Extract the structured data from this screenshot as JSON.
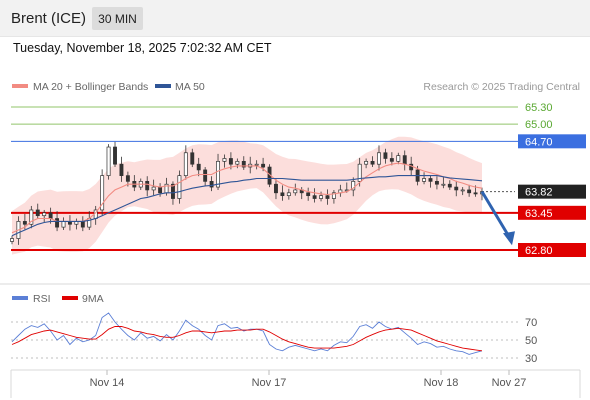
{
  "header": {
    "instrument": "Brent (ICE)",
    "timeframe": "30 MIN",
    "timestamp": "Tuesday, November 18, 2025 7:02:32 AM CET"
  },
  "legend": {
    "items": [
      {
        "label": "MA 20 + Bollinger Bands",
        "color": "#f28b82"
      },
      {
        "label": "MA 50",
        "color": "#2f5597"
      }
    ],
    "credit": "Research © 2025 Trading Central"
  },
  "rsi_legend": {
    "items": [
      {
        "label": "RSI",
        "color": "#5b7fd6"
      },
      {
        "label": "9MA",
        "color": "#e00000"
      }
    ]
  },
  "chart_data": [
    {
      "type": "candlestick",
      "title": "",
      "x_tick_labels": [
        "Nov 14",
        "Nov 17",
        "Nov 18",
        "Nov 27"
      ],
      "ylim": [
        62.5,
        65.5
      ],
      "levels": [
        {
          "value": 65.3,
          "label": "65.30",
          "kind": "resistance-target",
          "color": "#90c46a"
        },
        {
          "value": 65.0,
          "label": "65.00",
          "kind": "resistance-target",
          "color": "#90c46a"
        },
        {
          "value": 64.7,
          "label": "64.70",
          "kind": "pivot",
          "color": "#3b6fe0"
        },
        {
          "value": 63.82,
          "label": "63.82",
          "kind": "last-price",
          "color": "#222222"
        },
        {
          "value": 63.45,
          "label": "63.45",
          "kind": "support",
          "color": "#e00000"
        },
        {
          "value": 62.8,
          "label": "62.80",
          "kind": "support",
          "color": "#e00000"
        }
      ],
      "price_path": [
        63.0,
        63.3,
        63.25,
        63.5,
        63.4,
        63.45,
        63.35,
        63.2,
        63.3,
        63.25,
        63.3,
        63.2,
        63.35,
        63.5,
        64.1,
        64.6,
        64.3,
        64.1,
        64.0,
        63.9,
        64.0,
        63.85,
        63.9,
        63.8,
        63.95,
        63.7,
        64.1,
        64.5,
        64.3,
        64.2,
        64.0,
        63.9,
        64.35,
        64.4,
        64.3,
        64.35,
        64.25,
        64.3,
        64.3,
        64.25,
        63.95,
        63.8,
        63.75,
        63.8,
        63.85,
        63.8,
        63.75,
        63.7,
        63.75,
        63.7,
        63.8,
        63.85,
        63.85,
        64.0,
        64.3,
        64.35,
        64.3,
        64.5,
        64.4,
        64.35,
        64.45,
        64.3,
        64.2,
        64.0,
        64.05,
        64.0,
        63.95,
        63.95,
        63.9,
        63.85,
        63.85,
        63.8,
        63.78,
        63.82
      ],
      "ma20": [
        63.1,
        63.15,
        63.2,
        63.3,
        63.35,
        63.35,
        63.35,
        63.3,
        63.3,
        63.3,
        63.3,
        63.3,
        63.35,
        63.45,
        63.6,
        63.75,
        63.85,
        63.9,
        63.95,
        63.95,
        63.95,
        63.95,
        63.92,
        63.9,
        63.92,
        63.92,
        63.98,
        64.05,
        64.1,
        64.12,
        64.12,
        64.12,
        64.18,
        64.22,
        64.25,
        64.27,
        64.27,
        64.27,
        64.27,
        64.22,
        64.12,
        64.02,
        63.95,
        63.9,
        63.88,
        63.85,
        63.82,
        63.8,
        63.78,
        63.77,
        63.78,
        63.8,
        63.82,
        63.88,
        63.98,
        64.08,
        64.15,
        64.22,
        64.27,
        64.3,
        64.32,
        64.3,
        64.27,
        64.22,
        64.18,
        64.15,
        64.12,
        64.08,
        64.05,
        64.0,
        63.97,
        63.93,
        63.9,
        63.88
      ],
      "ma50": [
        63.05,
        63.1,
        63.15,
        63.2,
        63.25,
        63.28,
        63.3,
        63.3,
        63.3,
        63.3,
        63.3,
        63.3,
        63.32,
        63.35,
        63.4,
        63.45,
        63.5,
        63.55,
        63.6,
        63.65,
        63.7,
        63.72,
        63.75,
        63.78,
        63.8,
        63.8,
        63.82,
        63.85,
        63.88,
        63.9,
        63.92,
        63.93,
        63.95,
        63.97,
        63.99,
        64.0,
        64.02,
        64.03,
        64.05,
        64.05,
        64.05,
        64.05,
        64.05,
        64.04,
        64.03,
        64.02,
        64.02,
        64.02,
        64.02,
        64.02,
        64.02,
        64.02,
        64.02,
        64.03,
        64.05,
        64.06,
        64.07,
        64.08,
        64.08,
        64.09,
        64.1,
        64.1,
        64.1,
        64.1,
        64.1,
        64.1,
        64.1,
        64.08,
        64.06,
        64.05,
        64.04,
        64.03,
        64.02,
        64.01
      ]
    },
    {
      "type": "line",
      "title": "",
      "y_tick_labels": [
        "70",
        "50",
        "30"
      ],
      "ylim": [
        20,
        80
      ],
      "series": [
        {
          "name": "RSI",
          "values": [
            48,
            55,
            62,
            66,
            64,
            68,
            60,
            50,
            55,
            45,
            52,
            48,
            50,
            55,
            75,
            80,
            70,
            62,
            55,
            50,
            58,
            52,
            54,
            49,
            56,
            50,
            60,
            72,
            66,
            62,
            55,
            50,
            66,
            68,
            63,
            64,
            60,
            62,
            62,
            60,
            45,
            40,
            38,
            42,
            44,
            42,
            40,
            38,
            40,
            38,
            44,
            48,
            47,
            54,
            65,
            67,
            63,
            70,
            65,
            62,
            64,
            58,
            52,
            45,
            48,
            46,
            42,
            43,
            40,
            38,
            37,
            34,
            36,
            38
          ]
        },
        {
          "name": "9MA",
          "values": [
            45,
            48,
            52,
            56,
            58,
            60,
            61,
            59,
            57,
            55,
            53,
            52,
            51,
            51,
            56,
            62,
            65,
            65,
            63,
            60,
            59,
            57,
            56,
            54,
            53,
            53,
            55,
            58,
            60,
            60,
            59,
            58,
            59,
            60,
            60,
            61,
            61,
            61,
            62,
            62,
            59,
            55,
            51,
            48,
            46,
            44,
            42,
            41,
            41,
            41,
            41,
            42,
            43,
            45,
            49,
            53,
            56,
            59,
            61,
            62,
            63,
            62,
            61,
            58,
            55,
            52,
            49,
            47,
            45,
            43,
            41,
            40,
            39,
            38
          ]
        }
      ]
    }
  ]
}
